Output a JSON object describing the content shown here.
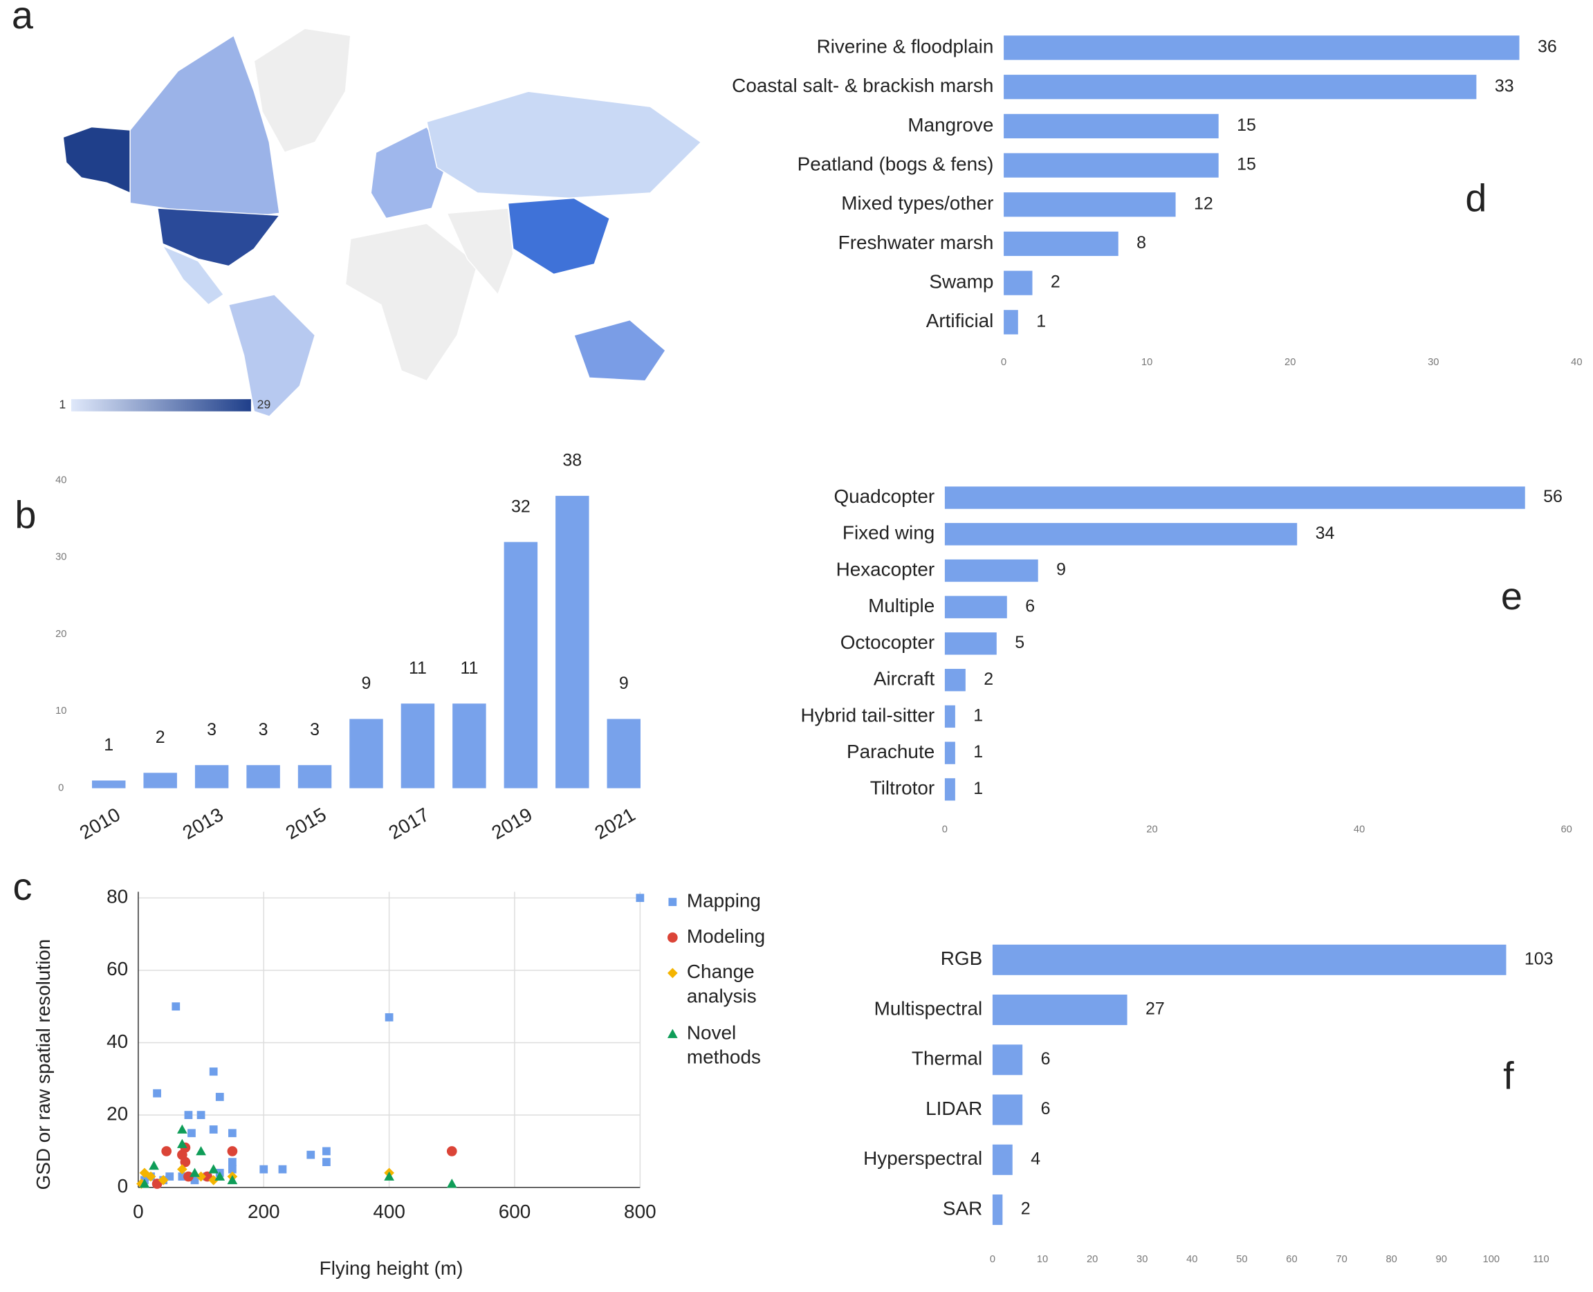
{
  "chart_data": [
    {
      "type": "choropleth",
      "panel": "a",
      "colorbar": {
        "min": "1",
        "max": "29",
        "colors": [
          "#dfe8fa",
          "#1f3f8a"
        ]
      }
    },
    {
      "type": "bar",
      "panel": "b",
      "categories": [
        "2010",
        null,
        "2013",
        null,
        "2015",
        null,
        "2017",
        null,
        "2019",
        null,
        "2021"
      ],
      "values": [
        1,
        2,
        3,
        3,
        3,
        9,
        11,
        11,
        32,
        38,
        9
      ],
      "color": "#78a2eb",
      "ylim": [
        0,
        40
      ],
      "yticks": [
        0,
        10,
        20,
        30,
        40
      ]
    },
    {
      "type": "scatter",
      "panel": "c",
      "x_label": "Flying height (m)",
      "y_label": "GSD or raw spatial resolution",
      "xlim": [
        0,
        800
      ],
      "ylim": [
        0,
        80
      ],
      "xticks": [
        0,
        200,
        400,
        600,
        800
      ],
      "yticks": [
        0,
        20,
        40,
        60,
        80
      ],
      "grid": true,
      "series": [
        {
          "name": "Mapping",
          "color": "#6d9eeb",
          "marker": "square",
          "x": [
            800,
            60,
            400,
            30,
            120,
            130,
            80,
            100,
            85,
            120,
            150,
            200,
            230,
            275,
            300,
            300,
            150,
            50,
            70,
            90,
            110,
            10,
            20,
            40,
            130,
            150
          ],
          "values": [
            80,
            50,
            47,
            26,
            32,
            25,
            20,
            20,
            15,
            16,
            15,
            5,
            5,
            9,
            10,
            7,
            7,
            3,
            3,
            2,
            3,
            2,
            3,
            2,
            4,
            5
          ]
        },
        {
          "name": "Modeling",
          "color": "#db4437",
          "marker": "circle",
          "x": [
            45,
            70,
            75,
            75,
            150,
            500,
            110,
            30,
            80
          ],
          "values": [
            10,
            9,
            7,
            11,
            10,
            10,
            3,
            1,
            3
          ]
        },
        {
          "name": "Change analysis",
          "color": "#f4b400",
          "marker": "diamond",
          "x": [
            10,
            20,
            40,
            70,
            100,
            120,
            400,
            150,
            5
          ],
          "values": [
            4,
            3,
            2,
            5,
            3,
            2,
            4,
            3,
            1
          ]
        },
        {
          "name": "Novel methods",
          "color": "#0f9d58",
          "marker": "triangle",
          "x": [
            70,
            70,
            100,
            25,
            120,
            150,
            400,
            500,
            10,
            90,
            130
          ],
          "values": [
            16,
            12,
            10,
            6,
            5,
            2,
            3,
            1,
            1,
            4,
            3
          ]
        }
      ]
    },
    {
      "type": "hbar",
      "panel": "d",
      "categories": [
        "Riverine & floodplain",
        "Coastal salt- & brackish marsh",
        "Mangrove",
        "Peatland (bogs & fens)",
        "Mixed types/other",
        "Freshwater marsh",
        "Swamp",
        "Artificial"
      ],
      "values": [
        36,
        33,
        15,
        15,
        12,
        8,
        2,
        1
      ],
      "color": "#78a2eb",
      "xlim": [
        0,
        40
      ],
      "xticks": [
        0,
        10,
        20,
        30,
        40
      ]
    },
    {
      "type": "hbar",
      "panel": "e",
      "categories": [
        "Quadcopter",
        "Fixed wing",
        "Hexacopter",
        "Multiple",
        "Octocopter",
        "Aircraft",
        "Hybrid tail-sitter",
        "Parachute",
        "Tiltrotor"
      ],
      "values": [
        56,
        34,
        9,
        6,
        5,
        2,
        1,
        1,
        1
      ],
      "color": "#78a2eb",
      "xlim": [
        0,
        60
      ],
      "xticks": [
        0,
        20,
        40,
        60
      ]
    },
    {
      "type": "hbar",
      "panel": "f",
      "categories": [
        "RGB",
        "Multispectral",
        "Thermal",
        "LIDAR",
        "Hyperspectral",
        "SAR"
      ],
      "values": [
        103,
        27,
        6,
        6,
        4,
        2
      ],
      "color": "#78a2eb",
      "xlim": [
        0,
        110
      ],
      "xticks": [
        0,
        10,
        20,
        30,
        40,
        50,
        60,
        70,
        80,
        90,
        100,
        110
      ]
    }
  ]
}
